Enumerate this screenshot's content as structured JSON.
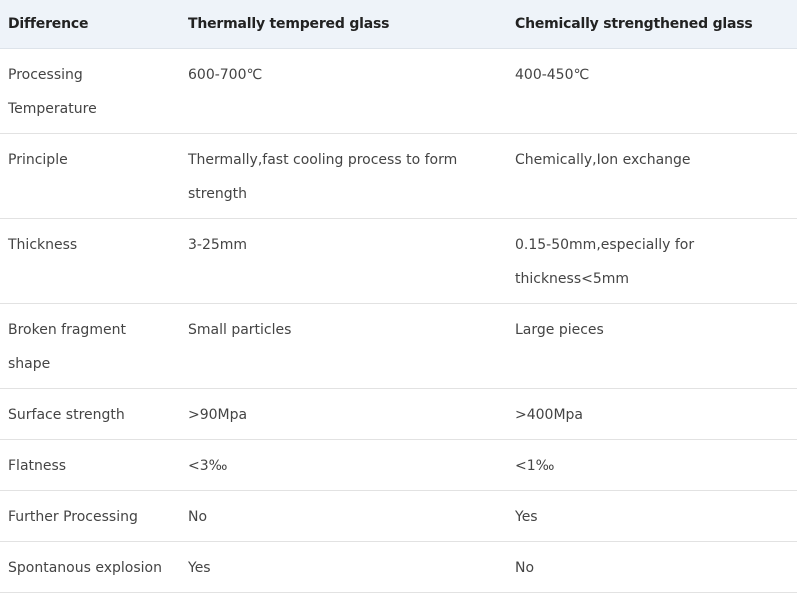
{
  "table": {
    "header": [
      "Difference",
      "Thermally tempered glass",
      "Chemically strengthened glass"
    ],
    "rows": [
      [
        "Processing Temperature",
        "600-700℃",
        "400-450℃"
      ],
      [
        "Principle",
        "Thermally,fast cooling process to form strength",
        "Chemically,Ion exchange"
      ],
      [
        "Thickness",
        "3-25mm",
        "0.15-50mm,especially for thickness<5mm"
      ],
      [
        "Broken fragment shape",
        "Small particles",
        "Large pieces"
      ],
      [
        "Surface strength",
        ">90Mpa",
        ">400Mpa"
      ],
      [
        "Flatness",
        "<3‰",
        "<1‰"
      ],
      [
        "Further Processing",
        "No",
        "Yes"
      ],
      [
        "Spontanous explosion",
        "Yes",
        "No"
      ]
    ]
  }
}
